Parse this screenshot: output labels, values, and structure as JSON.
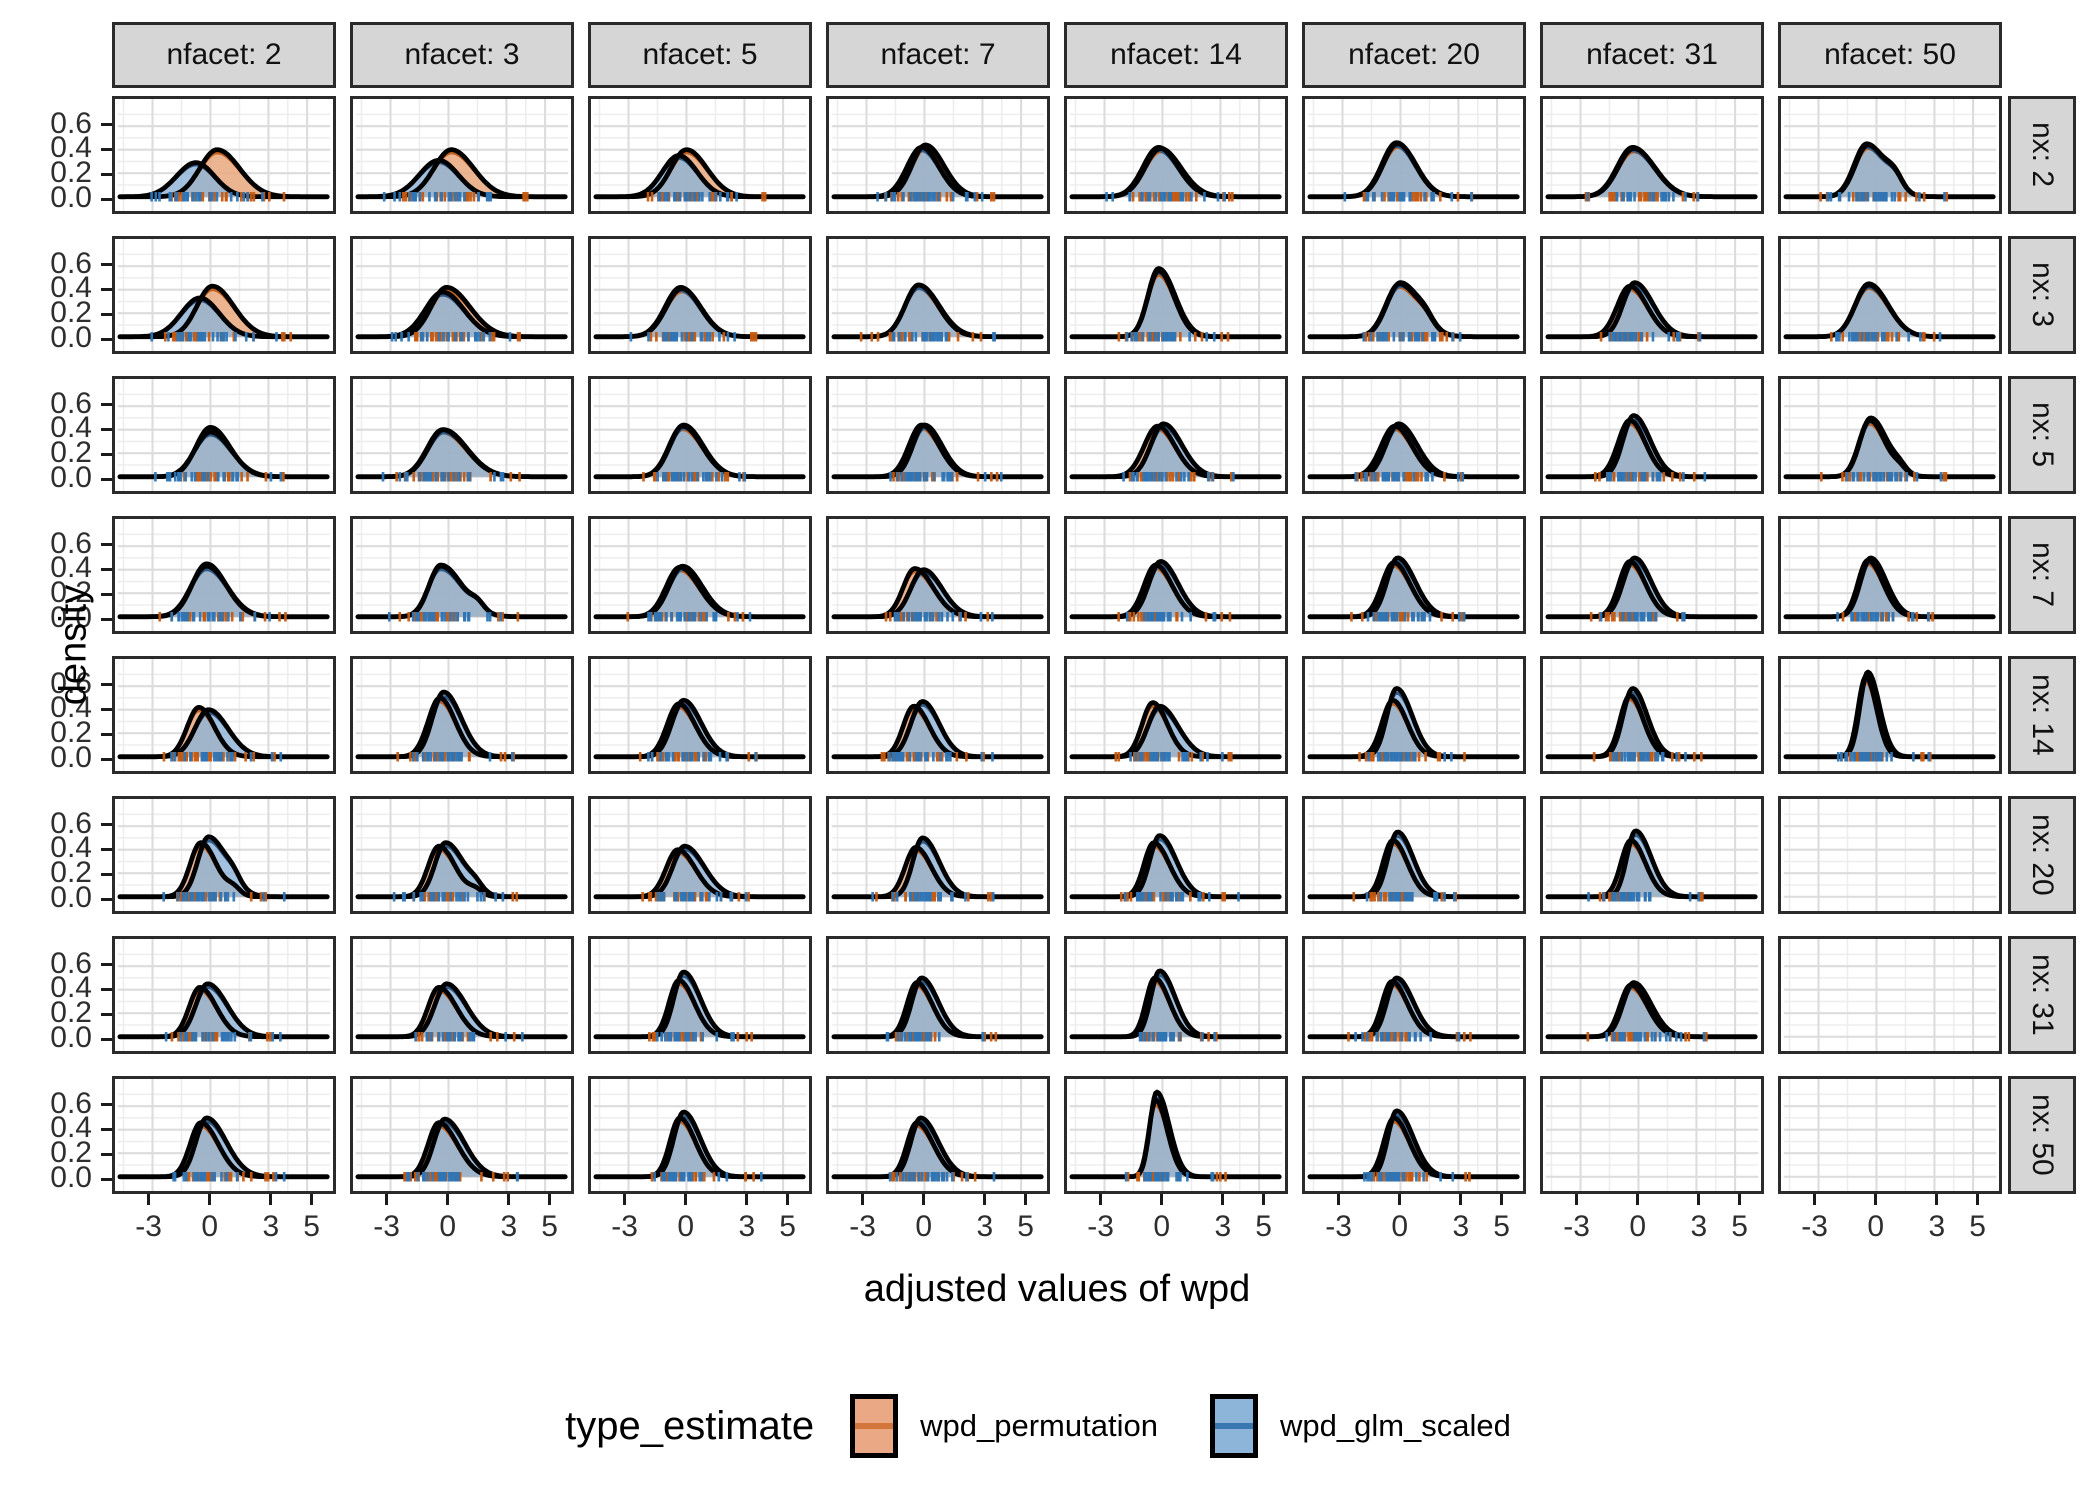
{
  "figure": {
    "x_axis_title": "adjusted values of wpd",
    "y_axis_title": "density",
    "col_facet_prefix": "nfacet: ",
    "row_facet_prefix": "nx: "
  },
  "legend": {
    "title": "type_estimate",
    "entries": [
      {
        "label": "wpd_permutation",
        "fill": "#EAA884",
        "line": "#D2763B"
      },
      {
        "label": "wpd_glm_scaled",
        "fill": "#8DB4D9",
        "line": "#3A76B0"
      }
    ]
  },
  "colors": {
    "orange_fill": "#E9A87E",
    "orange_line": "#C2601F",
    "orange_rug": "#C55A11",
    "blue_fill": "#8FB3D7",
    "blue_line": "#2D5986",
    "blue_rug": "#2E75B6",
    "outline": "#000000",
    "strip_bg": "#D6D6D6",
    "panel_border": "#2B2B2B",
    "grid_major": "#DCDCDC",
    "grid_minor": "#EDEDED",
    "tick_text": "#2E2E2E"
  },
  "chart_data": {
    "type": "area",
    "subtype": "faceted-density-grid",
    "title": "",
    "xlabel": "adjusted values of wpd",
    "ylabel": "density",
    "facet_cols_variable": "nfacet",
    "facet_rows_variable": "nx",
    "col_values": [
      2,
      3,
      5,
      7,
      14,
      20,
      31,
      50
    ],
    "row_values": [
      2,
      3,
      5,
      7,
      14,
      20,
      31,
      50
    ],
    "series_names": [
      "wpd_permutation",
      "wpd_glm_scaled"
    ],
    "legend_position": "bottom",
    "grid": true,
    "x_ticks": [
      -3,
      0,
      3,
      5
    ],
    "y_ticks": [
      0.6,
      0.4,
      0.2,
      0.0
    ],
    "x_range": [
      -4.8,
      6.2
    ],
    "y_range": [
      0,
      0.78
    ],
    "cell_param_format": "[peak_x, sigma_left, sigma_right, peak_density]; o = wpd_permutation (orange), b = wpd_glm_scaled (blue); x2 = secondary right-shoulder bump [x, height, sigma]; null cell = empty facet",
    "rows": [
      {
        "nx": 2,
        "cells": [
          {
            "o": [
              0.35,
              0.9,
              1.15,
              0.4
            ],
            "b": [
              -0.75,
              1.0,
              0.95,
              0.29
            ]
          },
          {
            "o": [
              0.15,
              0.9,
              1.15,
              0.4
            ],
            "b": [
              -0.5,
              1.0,
              1.0,
              0.31
            ]
          },
          {
            "o": [
              0.0,
              0.8,
              1.05,
              0.4
            ],
            "b": [
              -0.4,
              0.85,
              0.95,
              0.35
            ]
          },
          {
            "o": [
              0.05,
              0.7,
              0.95,
              0.44
            ],
            "b": [
              -0.15,
              0.75,
              0.9,
              0.42
            ]
          },
          {
            "o": [
              -0.1,
              0.8,
              1.05,
              0.41
            ],
            "b": [
              -0.2,
              0.8,
              1.0,
              0.42
            ]
          },
          {
            "o": [
              -0.15,
              0.75,
              0.95,
              0.45
            ],
            "b": [
              -0.2,
              0.75,
              0.95,
              0.46
            ]
          },
          {
            "o": [
              -0.25,
              0.8,
              1.1,
              0.41
            ],
            "b": [
              -0.3,
              0.8,
              1.1,
              0.42
            ]
          },
          {
            "o": [
              -0.45,
              0.65,
              0.95,
              0.44
            ],
            "b": [
              -0.5,
              0.65,
              0.95,
              0.45
            ],
            "x2": [
              0.95,
              0.1,
              0.4
            ]
          }
        ]
      },
      {
        "nx": 3,
        "cells": [
          {
            "o": [
              0.1,
              0.8,
              1.1,
              0.43
            ],
            "b": [
              -0.55,
              0.95,
              1.0,
              0.33
            ]
          },
          {
            "o": [
              -0.1,
              0.8,
              1.2,
              0.42
            ],
            "b": [
              -0.3,
              0.9,
              1.1,
              0.38
            ]
          },
          {
            "o": [
              -0.25,
              0.8,
              1.0,
              0.41
            ],
            "b": [
              -0.3,
              0.8,
              1.0,
              0.42
            ]
          },
          {
            "o": [
              -0.3,
              0.7,
              1.0,
              0.44
            ],
            "b": [
              -0.3,
              0.7,
              1.05,
              0.44
            ]
          },
          {
            "o": [
              -0.2,
              0.55,
              0.8,
              0.56
            ],
            "b": [
              -0.2,
              0.55,
              0.85,
              0.58
            ]
          },
          {
            "o": [
              -0.05,
              0.7,
              1.0,
              0.45
            ],
            "b": [
              0.0,
              0.7,
              1.0,
              0.46
            ],
            "x2": [
              1.3,
              0.06,
              0.4
            ]
          },
          {
            "o": [
              -0.45,
              0.65,
              0.9,
              0.43
            ],
            "b": [
              -0.2,
              0.6,
              0.95,
              0.46
            ]
          },
          {
            "o": [
              -0.4,
              0.7,
              1.0,
              0.44
            ],
            "b": [
              -0.4,
              0.7,
              1.0,
              0.45
            ]
          }
        ]
      },
      {
        "nx": 5,
        "cells": [
          {
            "o": [
              0.0,
              0.75,
              1.0,
              0.42
            ],
            "b": [
              0.0,
              0.8,
              1.05,
              0.38
            ]
          },
          {
            "o": [
              -0.3,
              0.8,
              1.2,
              0.4
            ],
            "b": [
              -0.25,
              0.8,
              1.2,
              0.4
            ]
          },
          {
            "o": [
              -0.2,
              0.7,
              1.0,
              0.43
            ],
            "b": [
              -0.15,
              0.7,
              1.0,
              0.44
            ]
          },
          {
            "o": [
              -0.15,
              0.65,
              0.9,
              0.44
            ],
            "b": [
              0.0,
              0.6,
              0.9,
              0.44
            ]
          },
          {
            "o": [
              -0.25,
              0.7,
              0.9,
              0.43
            ],
            "b": [
              0.05,
              0.65,
              0.95,
              0.45
            ]
          },
          {
            "o": [
              -0.3,
              0.7,
              0.9,
              0.43
            ],
            "b": [
              -0.1,
              0.65,
              0.95,
              0.45
            ]
          },
          {
            "o": [
              -0.45,
              0.6,
              0.8,
              0.48
            ],
            "b": [
              -0.25,
              0.55,
              0.85,
              0.52
            ]
          },
          {
            "o": [
              -0.35,
              0.55,
              0.8,
              0.48
            ],
            "b": [
              -0.3,
              0.55,
              0.85,
              0.5
            ],
            "x2": [
              1.2,
              0.05,
              0.35
            ]
          }
        ]
      },
      {
        "nx": 7,
        "cells": [
          {
            "o": [
              -0.2,
              0.75,
              1.0,
              0.45
            ],
            "b": [
              -0.2,
              0.8,
              1.05,
              0.43
            ]
          },
          {
            "o": [
              -0.4,
              0.6,
              1.1,
              0.44
            ],
            "b": [
              -0.4,
              0.62,
              1.1,
              0.43
            ],
            "x2": [
              1.5,
              0.06,
              0.35
            ]
          },
          {
            "o": [
              -0.35,
              0.7,
              1.0,
              0.42
            ],
            "b": [
              -0.2,
              0.7,
              1.0,
              0.43
            ]
          },
          {
            "o": [
              -0.5,
              0.6,
              0.95,
              0.41
            ],
            "b": [
              -0.05,
              0.65,
              0.95,
              0.4
            ]
          },
          {
            "o": [
              -0.35,
              0.6,
              0.85,
              0.44
            ],
            "b": [
              -0.1,
              0.6,
              0.9,
              0.47
            ]
          },
          {
            "o": [
              -0.35,
              0.6,
              0.85,
              0.46
            ],
            "b": [
              -0.15,
              0.55,
              0.9,
              0.5
            ]
          },
          {
            "o": [
              -0.45,
              0.55,
              0.8,
              0.47
            ],
            "b": [
              -0.2,
              0.58,
              0.85,
              0.5
            ]
          },
          {
            "o": [
              -0.45,
              0.5,
              0.78,
              0.48
            ],
            "b": [
              -0.3,
              0.52,
              0.8,
              0.5
            ]
          }
        ]
      },
      {
        "nx": 14,
        "cells": [
          {
            "o": [
              -0.6,
              0.6,
              0.8,
              0.42
            ],
            "b": [
              -0.1,
              0.7,
              1.0,
              0.4
            ]
          },
          {
            "o": [
              -0.45,
              0.6,
              0.8,
              0.5
            ],
            "b": [
              -0.25,
              0.58,
              0.9,
              0.55
            ]
          },
          {
            "o": [
              -0.4,
              0.6,
              0.85,
              0.45
            ],
            "b": [
              -0.15,
              0.6,
              0.9,
              0.48
            ]
          },
          {
            "o": [
              -0.55,
              0.55,
              0.8,
              0.43
            ],
            "b": [
              -0.1,
              0.6,
              0.85,
              0.47
            ]
          },
          {
            "o": [
              -0.5,
              0.55,
              0.75,
              0.46
            ],
            "b": [
              -0.15,
              0.6,
              0.95,
              0.43
            ]
          },
          {
            "o": [
              -0.4,
              0.55,
              0.75,
              0.48
            ],
            "b": [
              -0.2,
              0.5,
              0.8,
              0.58
            ]
          },
          {
            "o": [
              -0.45,
              0.5,
              0.7,
              0.52
            ],
            "b": [
              -0.3,
              0.5,
              0.75,
              0.58
            ]
          },
          {
            "o": [
              -0.55,
              0.4,
              0.55,
              0.68
            ],
            "b": [
              -0.45,
              0.4,
              0.6,
              0.72
            ]
          }
        ]
      },
      {
        "nx": 20,
        "cells": [
          {
            "o": [
              -0.5,
              0.55,
              0.8,
              0.46
            ],
            "b": [
              -0.1,
              0.55,
              0.95,
              0.51
            ],
            "x2": [
              1.2,
              0.06,
              0.35
            ]
          },
          {
            "o": [
              -0.5,
              0.55,
              0.85,
              0.43
            ],
            "b": [
              -0.15,
              0.55,
              0.95,
              0.46
            ],
            "x2": [
              1.4,
              0.05,
              0.35
            ]
          },
          {
            "o": [
              -0.45,
              0.6,
              0.9,
              0.4
            ],
            "b": [
              -0.1,
              0.6,
              1.0,
              0.43
            ]
          },
          {
            "o": [
              -0.45,
              0.55,
              0.8,
              0.42
            ],
            "b": [
              -0.1,
              0.5,
              0.85,
              0.5
            ]
          },
          {
            "o": [
              -0.45,
              0.5,
              0.8,
              0.46
            ],
            "b": [
              -0.15,
              0.5,
              0.85,
              0.52
            ]
          },
          {
            "o": [
              -0.4,
              0.5,
              0.75,
              0.48
            ],
            "b": [
              -0.15,
              0.5,
              0.8,
              0.55
            ]
          },
          {
            "o": [
              -0.4,
              0.5,
              0.75,
              0.48
            ],
            "b": [
              -0.15,
              0.45,
              0.8,
              0.56
            ]
          },
          null
        ]
      },
      {
        "nx": 31,
        "cells": [
          {
            "o": [
              -0.55,
              0.55,
              0.85,
              0.42
            ],
            "b": [
              -0.15,
              0.6,
              1.0,
              0.45
            ]
          },
          {
            "o": [
              -0.5,
              0.55,
              0.9,
              0.42
            ],
            "b": [
              -0.1,
              0.6,
              1.0,
              0.45
            ]
          },
          {
            "o": [
              -0.4,
              0.5,
              0.8,
              0.48
            ],
            "b": [
              -0.15,
              0.5,
              0.85,
              0.55
            ]
          },
          {
            "o": [
              -0.4,
              0.5,
              0.8,
              0.46
            ],
            "b": [
              -0.15,
              0.5,
              0.85,
              0.5
            ]
          },
          {
            "o": [
              -0.4,
              0.45,
              0.75,
              0.5
            ],
            "b": [
              -0.15,
              0.45,
              0.8,
              0.56
            ]
          },
          {
            "o": [
              -0.45,
              0.5,
              0.8,
              0.47
            ],
            "b": [
              -0.2,
              0.5,
              0.85,
              0.5
            ]
          },
          {
            "o": [
              -0.4,
              0.55,
              0.85,
              0.44
            ],
            "b": [
              -0.25,
              0.55,
              0.9,
              0.46
            ]
          },
          null
        ]
      },
      {
        "nx": 50,
        "cells": [
          {
            "o": [
              -0.5,
              0.55,
              0.9,
              0.46
            ],
            "b": [
              -0.2,
              0.55,
              1.0,
              0.5
            ]
          },
          {
            "o": [
              -0.5,
              0.55,
              0.95,
              0.46
            ],
            "b": [
              -0.2,
              0.55,
              1.0,
              0.49
            ]
          },
          {
            "o": [
              -0.35,
              0.5,
              0.8,
              0.5
            ],
            "b": [
              -0.15,
              0.5,
              0.85,
              0.55
            ]
          },
          {
            "o": [
              -0.4,
              0.5,
              0.85,
              0.46
            ],
            "b": [
              -0.2,
              0.5,
              0.9,
              0.5
            ]
          },
          {
            "o": [
              -0.35,
              0.35,
              0.6,
              0.65
            ],
            "b": [
              -0.3,
              0.35,
              0.65,
              0.72
            ]
          },
          {
            "o": [
              -0.35,
              0.5,
              0.8,
              0.5
            ],
            "b": [
              -0.2,
              0.45,
              0.85,
              0.56
            ]
          },
          null,
          null
        ]
      }
    ]
  }
}
